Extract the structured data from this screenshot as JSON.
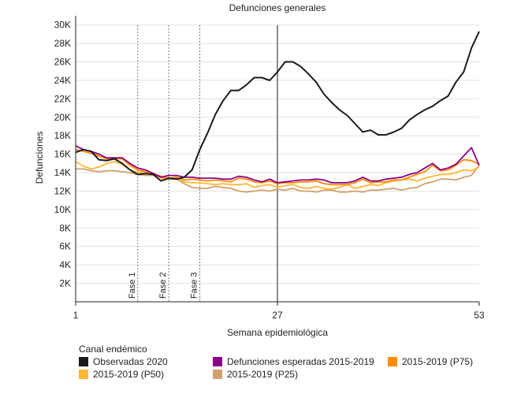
{
  "chart_data": {
    "type": "line",
    "title": "Defunciones generales",
    "xlabel": "Semana epidemiológica",
    "ylabel": "Defunciones",
    "xlim": [
      1,
      53
    ],
    "ylim": [
      0,
      31000
    ],
    "x_ticks": [
      1,
      27,
      53
    ],
    "y_ticks": [
      2000,
      4000,
      6000,
      8000,
      10000,
      12000,
      14000,
      16000,
      18000,
      20000,
      22000,
      24000,
      26000,
      28000,
      30000
    ],
    "y_tick_labels": [
      "2K",
      "4K",
      "6K",
      "8K",
      "10K",
      "12K",
      "14K",
      "16K",
      "18K",
      "20K",
      "22K",
      "24K",
      "26K",
      "28K",
      "30K"
    ],
    "reference_lines": [
      {
        "x": 9,
        "label": "Fase 1",
        "style": "dotted"
      },
      {
        "x": 13,
        "label": "Fase 2",
        "style": "dotted"
      },
      {
        "x": 17,
        "label": "Fase 3",
        "style": "dotted"
      },
      {
        "x": 27,
        "label": "",
        "style": "solid"
      }
    ],
    "legend_title": "Canal endémico",
    "legend_position": "bottom",
    "series": [
      {
        "name": "Observadas 2020",
        "color": "#1a1a1a",
        "x": [
          1,
          2,
          3,
          4,
          5,
          6,
          7,
          8,
          9,
          10,
          11,
          12,
          13,
          14,
          15,
          16,
          17,
          18,
          19,
          20,
          21,
          22,
          23,
          24,
          25,
          26,
          27,
          28,
          29,
          30,
          31,
          32,
          33,
          34,
          35,
          36,
          37,
          38,
          39,
          40,
          41,
          42,
          43,
          44,
          45,
          46,
          47,
          48,
          49,
          50,
          51,
          52,
          53
        ],
        "values": [
          16200,
          16500,
          16300,
          15400,
          15300,
          15500,
          15000,
          14300,
          13800,
          13900,
          13800,
          13100,
          13400,
          13300,
          13500,
          14300,
          16500,
          18300,
          20300,
          21800,
          22900,
          22900,
          23500,
          24300,
          24300,
          24000,
          24900,
          26000,
          26000,
          25500,
          24700,
          23800,
          22500,
          21600,
          20800,
          20200,
          19300,
          18400,
          18600,
          18100,
          18100,
          18400,
          18800,
          19700,
          20300,
          20800,
          21200,
          21800,
          22300,
          23800,
          24900,
          27500,
          29300
        ]
      },
      {
        "name": "Defunciones esperadas 2015-2019",
        "color": "#8b008b",
        "x": [
          1,
          2,
          3,
          4,
          5,
          6,
          7,
          8,
          9,
          10,
          11,
          12,
          13,
          14,
          15,
          16,
          17,
          18,
          19,
          20,
          21,
          22,
          23,
          24,
          25,
          26,
          27,
          28,
          29,
          30,
          31,
          32,
          33,
          34,
          35,
          36,
          37,
          38,
          39,
          40,
          41,
          42,
          43,
          44,
          45,
          46,
          47,
          48,
          49,
          50,
          51,
          52,
          53
        ],
        "values": [
          16900,
          16500,
          16300,
          16000,
          15600,
          15600,
          15600,
          15000,
          14500,
          14300,
          13900,
          13500,
          13700,
          13700,
          13500,
          13500,
          13400,
          13400,
          13400,
          13300,
          13300,
          13600,
          13500,
          13200,
          13000,
          13300,
          12900,
          13000,
          13100,
          13200,
          13200,
          13300,
          13200,
          12900,
          12900,
          12900,
          13100,
          13500,
          13100,
          13100,
          13300,
          13400,
          13500,
          13800,
          14000,
          14500,
          15000,
          14300,
          14500,
          14900,
          15800,
          16700,
          14800
        ]
      },
      {
        "name": "2015-2019 (P75)",
        "color": "#ff8c00",
        "x": [
          1,
          2,
          3,
          4,
          5,
          6,
          7,
          8,
          9,
          10,
          11,
          12,
          13,
          14,
          15,
          16,
          17,
          18,
          19,
          20,
          21,
          22,
          23,
          24,
          25,
          26,
          27,
          28,
          29,
          30,
          31,
          32,
          33,
          34,
          35,
          36,
          37,
          38,
          39,
          40,
          41,
          42,
          43,
          44,
          45,
          46,
          47,
          48,
          49,
          50,
          51,
          52,
          53
        ],
        "values": [
          16500,
          16300,
          16100,
          15800,
          15500,
          15500,
          15500,
          14800,
          14300,
          14100,
          13900,
          13600,
          13400,
          13500,
          13200,
          13300,
          13200,
          13100,
          13200,
          13100,
          13000,
          13400,
          13300,
          13000,
          12900,
          13100,
          12800,
          12900,
          12900,
          13000,
          13000,
          13100,
          12800,
          12700,
          12700,
          12700,
          12900,
          13300,
          12900,
          13000,
          13000,
          13200,
          13200,
          13500,
          13800,
          14100,
          14800,
          14200,
          14300,
          14800,
          15400,
          15300,
          14900
        ]
      },
      {
        "name": "2015-2019 (P50)",
        "color": "#ffb733",
        "x": [
          1,
          2,
          3,
          4,
          5,
          6,
          7,
          8,
          9,
          10,
          11,
          12,
          13,
          14,
          15,
          16,
          17,
          18,
          19,
          20,
          21,
          22,
          23,
          24,
          25,
          26,
          27,
          28,
          29,
          30,
          31,
          32,
          33,
          34,
          35,
          36,
          37,
          38,
          39,
          40,
          41,
          42,
          43,
          44,
          45,
          46,
          47,
          48,
          49,
          50,
          51,
          52,
          53
        ],
        "values": [
          15200,
          14700,
          14400,
          14600,
          15000,
          15200,
          14900,
          14300,
          14000,
          14100,
          13900,
          13400,
          13300,
          13400,
          13000,
          12900,
          12900,
          12800,
          12700,
          12800,
          12700,
          12700,
          12800,
          12400,
          12600,
          12700,
          12400,
          12600,
          12700,
          12400,
          12300,
          12500,
          12300,
          12200,
          12400,
          12700,
          12300,
          12500,
          12700,
          12600,
          12900,
          13100,
          13200,
          13300,
          13100,
          13400,
          13600,
          13800,
          13800,
          14000,
          14300,
          14200,
          14600
        ]
      },
      {
        "name": "2015-2019 (P25)",
        "color": "#d2a06e",
        "x": [
          1,
          2,
          3,
          4,
          5,
          6,
          7,
          8,
          9,
          10,
          11,
          12,
          13,
          14,
          15,
          16,
          17,
          18,
          19,
          20,
          21,
          22,
          23,
          24,
          25,
          26,
          27,
          28,
          29,
          30,
          31,
          32,
          33,
          34,
          35,
          36,
          37,
          38,
          39,
          40,
          41,
          42,
          43,
          44,
          45,
          46,
          47,
          48,
          49,
          50,
          51,
          52,
          53
        ],
        "values": [
          14400,
          14400,
          14200,
          14100,
          14200,
          14200,
          14100,
          14000,
          13800,
          13700,
          13700,
          13500,
          13300,
          13300,
          12800,
          12400,
          12300,
          12300,
          12500,
          12400,
          12300,
          12000,
          11900,
          12000,
          12100,
          12000,
          12200,
          12100,
          12300,
          12000,
          12000,
          11900,
          12100,
          12100,
          11900,
          11900,
          12000,
          11900,
          12100,
          12100,
          12200,
          12300,
          12100,
          12300,
          12400,
          12800,
          13000,
          13300,
          13300,
          13200,
          13500,
          13700,
          14800
        ]
      }
    ]
  }
}
